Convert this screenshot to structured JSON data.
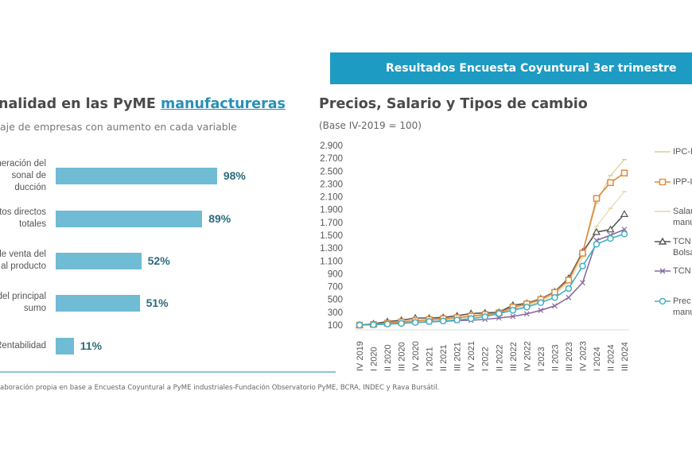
{
  "banner": {
    "title": "Resultados Encuesta Coyuntural 3er trimestre"
  },
  "left": {
    "title_prefix": "nalidad en las PyME ",
    "title_highlight": "manufactureras",
    "subtitle": "aje de empresas con aumento en cada variable"
  },
  "right": {
    "title": "Precios, Salario y Tipos de cambio",
    "subtitle": "(Base IV-2019 = 100)"
  },
  "source": "aboración propia en base a Encuesta Coyuntural a PyME industriales-Fundación Observatorio PyME, BCRA, INDEC y Rava Bursátil.",
  "colors": {
    "banner": "#1d9bc3",
    "bar": "#6fbcd4",
    "value_text": "#2d6b7d"
  },
  "chart_data": [
    {
      "type": "bar",
      "orientation": "horizontal",
      "categories": [
        "neración del\nsonal de\nducción",
        "tos directos\n totales",
        "de venta del\nal producto",
        "del principal\nsumo",
        "Rentabilidad"
      ],
      "values": [
        98,
        89,
        52,
        51,
        11
      ],
      "value_labels": [
        "98%",
        "89%",
        "52%",
        "51%",
        "11%"
      ],
      "xlim": [
        0,
        100
      ],
      "color": "#6fbcd4"
    },
    {
      "type": "line",
      "ylim": [
        100,
        2900
      ],
      "yticks": [
        100,
        300,
        500,
        700,
        900,
        1100,
        1300,
        1500,
        1700,
        1900,
        2100,
        2300,
        2500,
        2700,
        2900
      ],
      "ytick_labels": [
        "100",
        "300",
        "500",
        "700",
        "900",
        "1.100",
        "1.300",
        "1.500",
        "1.700",
        "1.900",
        "2.100",
        "2.300",
        "2.500",
        "2.700",
        "2.900"
      ],
      "categories": [
        "IV 2019",
        "I 2020",
        "II 2020",
        "III 2020",
        "IV 2020",
        "I 2021",
        "II 2021",
        "III 2021",
        "IV 2021",
        "I 2022",
        "II 2022",
        "III 2022",
        "IV 2022",
        "I 2023",
        "II 2023",
        "III 2023",
        "IV 2023",
        "I 2024",
        "II 2024",
        "III 2024"
      ],
      "grid": false,
      "legend_position": "right",
      "series": [
        {
          "name": "IPC-I",
          "color": "#d8cf9a",
          "marker": "dash",
          "values": [
            100,
            110,
            130,
            150,
            170,
            185,
            200,
            215,
            240,
            270,
            290,
            370,
            420,
            490,
            600,
            800,
            1230,
            2000,
            2430,
            2680
          ]
        },
        {
          "name": "IPP-I",
          "color": "#e08a3c",
          "marker": "square",
          "values": [
            100,
            110,
            130,
            150,
            170,
            185,
            200,
            215,
            240,
            265,
            290,
            380,
            430,
            500,
            610,
            800,
            1220,
            2075,
            2320,
            2470
          ]
        },
        {
          "name": "Salar\nmanu",
          "color": "#e6d9a8",
          "marker": "dash",
          "values": [
            100,
            110,
            125,
            140,
            160,
            175,
            190,
            205,
            225,
            250,
            280,
            350,
            400,
            470,
            580,
            760,
            1150,
            1640,
            1920,
            2180
          ]
        },
        {
          "name": "TCN\nBolsa",
          "color": "#555555",
          "marker": "triangle",
          "values": [
            100,
            120,
            155,
            175,
            210,
            210,
            220,
            245,
            280,
            290,
            300,
            410,
            440,
            510,
            620,
            830,
            1240,
            1550,
            1590,
            1830
          ]
        },
        {
          "name": "TCN",
          "color": "#8a6a9e",
          "marker": "x",
          "values": [
            100,
            110,
            120,
            130,
            140,
            150,
            160,
            170,
            175,
            190,
            210,
            235,
            275,
            330,
            400,
            530,
            760,
            1420,
            1500,
            1590
          ]
        },
        {
          "name": "Prec\nmanu",
          "color": "#3fb0c6",
          "marker": "circle",
          "values": [
            100,
            105,
            115,
            125,
            140,
            155,
            165,
            180,
            200,
            230,
            280,
            330,
            380,
            450,
            530,
            670,
            1020,
            1360,
            1450,
            1520
          ]
        }
      ]
    }
  ]
}
